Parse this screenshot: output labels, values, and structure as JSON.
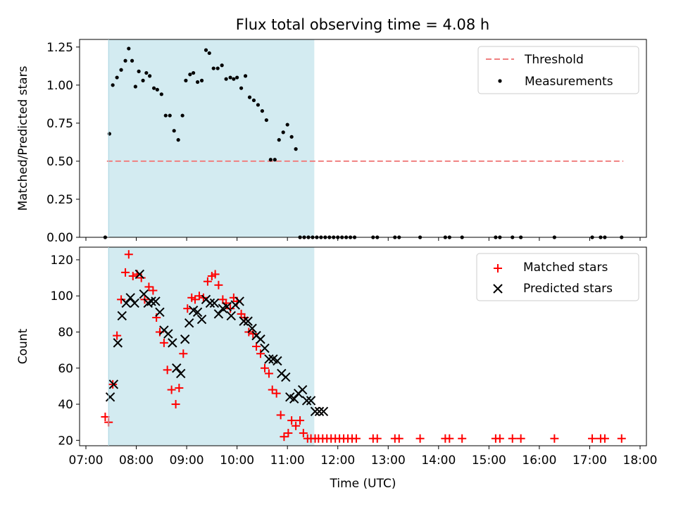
{
  "chart_data": [
    {
      "type": "scatter",
      "title": "Flux total observing time = 4.08 h",
      "xlabel": "",
      "ylabel": "Matched/Predicted stars",
      "xlim": [
        "07:00",
        "18:00"
      ],
      "ylim": [
        0,
        1.3
      ],
      "yticks": [
        0.0,
        0.25,
        0.5,
        0.75,
        1.0,
        1.25
      ],
      "ytick_labels": [
        "0.00",
        "0.25",
        "0.50",
        "0.75",
        "1.00",
        "1.25"
      ],
      "shaded_span": [
        "07:27",
        "11:32"
      ],
      "shaded_color": "#d3ebf1",
      "legend_position": "top-right",
      "threshold": {
        "name": "Threshold",
        "value": 0.5,
        "x_range": [
          "07:25",
          "17:40"
        ],
        "color": "#f08080",
        "style": "dashed"
      },
      "series": [
        {
          "name": "Measurements",
          "marker": "dot",
          "color": "#000000",
          "x": [
            "07:23",
            "07:28",
            "07:32",
            "07:37",
            "07:42",
            "07:47",
            "07:51",
            "07:55",
            "07:59",
            "08:03",
            "08:08",
            "08:12",
            "08:16",
            "08:21",
            "08:25",
            "08:30",
            "08:35",
            "08:40",
            "08:45",
            "08:50",
            "08:55",
            "08:59",
            "09:04",
            "09:08",
            "09:13",
            "09:18",
            "09:23",
            "09:27",
            "09:32",
            "09:37",
            "09:42",
            "09:47",
            "09:52",
            "09:56",
            "10:00",
            "10:05",
            "10:10",
            "10:15",
            "10:20",
            "10:25",
            "10:30",
            "10:35",
            "10:40",
            "10:45",
            "10:50",
            "10:55",
            "11:00",
            "11:05",
            "11:10",
            "11:15",
            "11:20",
            "11:25",
            "11:30",
            "11:35",
            "11:40",
            "11:45",
            "11:50",
            "11:55",
            "12:00",
            "12:05",
            "12:10",
            "12:15",
            "12:20",
            "12:42",
            "12:47",
            "13:08",
            "13:13",
            "13:38",
            "14:08",
            "14:13",
            "14:28",
            "15:08",
            "15:13",
            "15:28",
            "15:38",
            "16:18",
            "17:03",
            "17:13",
            "17:18",
            "17:38"
          ],
          "y": [
            0.0,
            0.68,
            1.0,
            1.05,
            1.1,
            1.16,
            1.24,
            1.16,
            0.99,
            1.09,
            1.03,
            1.08,
            1.06,
            0.98,
            0.97,
            0.94,
            0.8,
            0.8,
            0.7,
            0.64,
            0.8,
            1.03,
            1.07,
            1.08,
            1.02,
            1.03,
            1.23,
            1.21,
            1.11,
            1.11,
            1.13,
            1.04,
            1.05,
            1.04,
            1.05,
            0.98,
            1.06,
            0.92,
            0.9,
            0.87,
            0.83,
            0.77,
            0.51,
            0.51,
            0.64,
            0.69,
            0.74,
            0.66,
            0.58,
            0.0,
            0.0,
            0.0,
            0.0,
            0.0,
            0.0,
            0.0,
            0.0,
            0.0,
            0.0,
            0.0,
            0.0,
            0.0,
            0.0,
            0.0,
            0.0,
            0.0,
            0.0,
            0.0,
            0.0,
            0.0,
            0.0,
            0.0,
            0.0,
            0.0,
            0.0,
            0.0,
            0.0,
            0.0,
            0.0,
            0.0
          ]
        }
      ]
    },
    {
      "type": "scatter",
      "title": "",
      "xlabel": "Time (UTC)",
      "ylabel": "Count",
      "xlim": [
        "07:00",
        "18:00"
      ],
      "xticks": [
        "07:00",
        "08:00",
        "09:00",
        "10:00",
        "11:00",
        "12:00",
        "13:00",
        "14:00",
        "15:00",
        "16:00",
        "17:00",
        "18:00"
      ],
      "ylim": [
        17,
        127
      ],
      "yticks": [
        20,
        40,
        60,
        80,
        100,
        120
      ],
      "ytick_labels": [
        "20",
        "40",
        "60",
        "80",
        "100",
        "120"
      ],
      "shaded_span": [
        "07:27",
        "11:32"
      ],
      "shaded_color": "#d3ebf1",
      "legend_position": "top-right",
      "series": [
        {
          "name": "Matched stars",
          "marker": "plus",
          "color": "#ff0000",
          "x": [
            "07:23",
            "07:27",
            "07:32",
            "07:37",
            "07:42",
            "07:47",
            "07:51",
            "07:56",
            "08:01",
            "08:06",
            "08:10",
            "08:15",
            "08:20",
            "08:24",
            "08:28",
            "08:33",
            "08:37",
            "08:42",
            "08:47",
            "08:51",
            "08:56",
            "09:01",
            "09:06",
            "09:10",
            "09:15",
            "09:20",
            "09:25",
            "09:30",
            "09:34",
            "09:38",
            "09:43",
            "09:47",
            "09:52",
            "09:56",
            "10:00",
            "10:05",
            "10:09",
            "10:14",
            "10:19",
            "10:23",
            "10:28",
            "10:33",
            "10:38",
            "10:42",
            "10:47",
            "10:52",
            "10:56",
            "11:01",
            "11:05",
            "11:10",
            "11:15",
            "11:19",
            "11:24",
            "11:28",
            "11:33",
            "11:37",
            "11:42",
            "11:47",
            "11:52",
            "11:57",
            "12:02",
            "12:07",
            "12:12",
            "12:17",
            "12:22",
            "12:42",
            "12:47",
            "13:08",
            "13:13",
            "13:38",
            "14:08",
            "14:13",
            "14:28",
            "15:08",
            "15:13",
            "15:28",
            "15:38",
            "16:18",
            "17:03",
            "17:13",
            "17:18",
            "17:38"
          ],
          "y": [
            33,
            30,
            51,
            78,
            98,
            113,
            123,
            111,
            112,
            110,
            98,
            105,
            103,
            88,
            80,
            74,
            59,
            48,
            40,
            49,
            68,
            93,
            99,
            98,
            100,
            99,
            108,
            111,
            112,
            106,
            98,
            96,
            93,
            99,
            97,
            90,
            88,
            80,
            79,
            72,
            68,
            60,
            57,
            48,
            46,
            34,
            22,
            24,
            31,
            28,
            31,
            24,
            21,
            21,
            21,
            21,
            21,
            21,
            21,
            21,
            21,
            21,
            21,
            21,
            21,
            21,
            21,
            21,
            21,
            21,
            21,
            21,
            21,
            21,
            21,
            21,
            21,
            21,
            21,
            21,
            21,
            21
          ]
        },
        {
          "name": "Predicted stars",
          "marker": "x",
          "color": "#000000",
          "x": [
            "07:29",
            "07:33",
            "07:38",
            "07:43",
            "07:48",
            "07:53",
            "07:58",
            "08:04",
            "08:09",
            "08:14",
            "08:18",
            "08:23",
            "08:28",
            "08:33",
            "08:38",
            "08:43",
            "08:48",
            "08:53",
            "08:58",
            "09:03",
            "09:08",
            "09:13",
            "09:18",
            "09:23",
            "09:28",
            "09:33",
            "09:38",
            "09:43",
            "09:48",
            "09:53",
            "09:58",
            "10:03",
            "10:08",
            "10:13",
            "10:18",
            "10:23",
            "10:28",
            "10:33",
            "10:38",
            "10:43",
            "10:48",
            "10:53",
            "10:58",
            "11:03",
            "11:08",
            "11:13",
            "11:18",
            "11:23",
            "11:28",
            "11:33",
            "11:38",
            "11:43"
          ],
          "y": [
            44,
            51,
            74,
            89,
            96,
            99,
            96,
            112,
            101,
            96,
            97,
            97,
            91,
            81,
            79,
            74,
            60,
            57,
            76,
            85,
            92,
            91,
            87,
            98,
            96,
            96,
            90,
            93,
            94,
            89,
            95,
            97,
            86,
            86,
            82,
            78,
            76,
            71,
            65,
            65,
            64,
            57,
            55,
            44,
            43,
            46,
            48,
            42,
            42,
            36,
            36,
            36
          ]
        }
      ]
    }
  ]
}
